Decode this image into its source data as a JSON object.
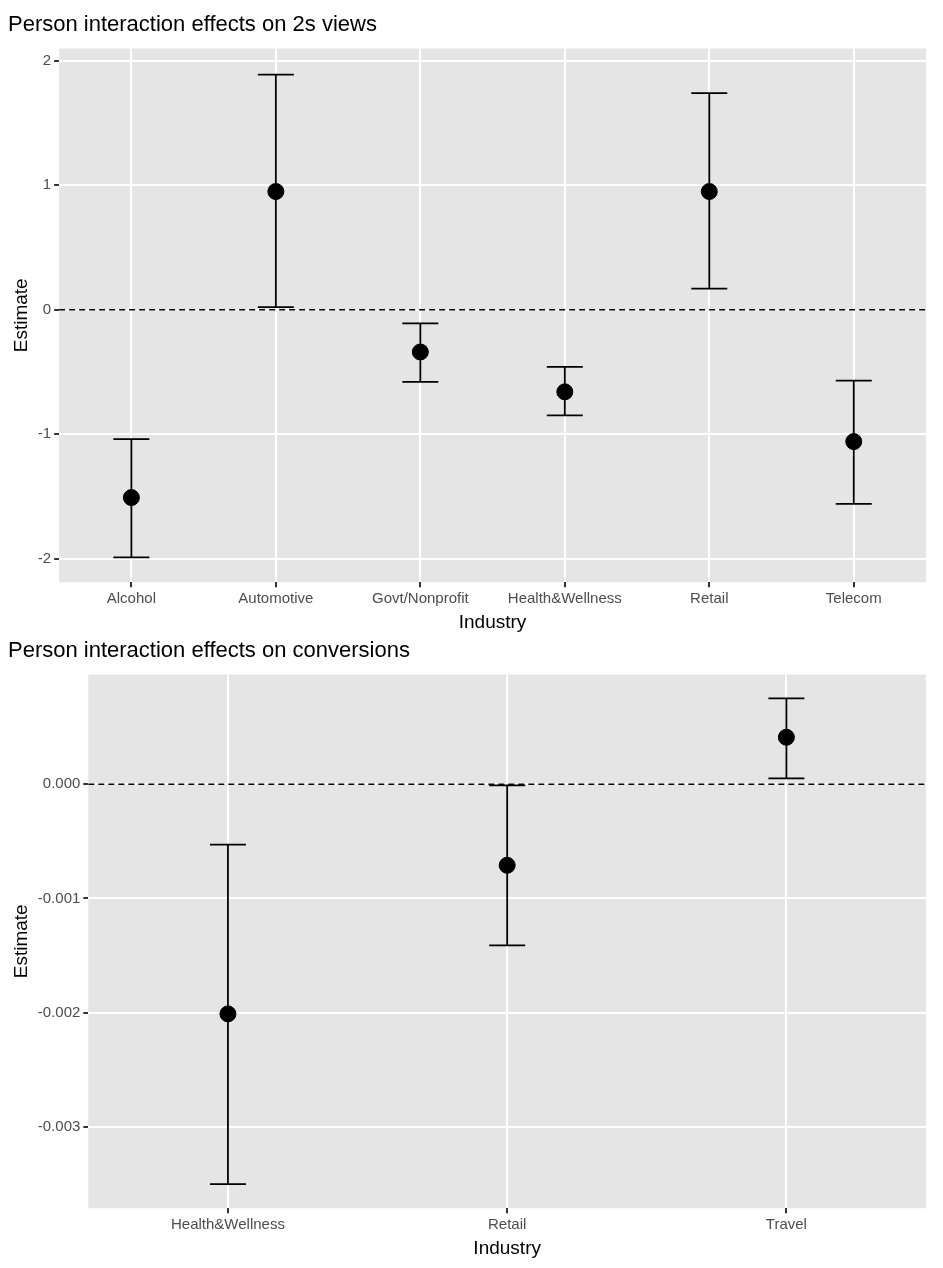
{
  "chart_data": [
    {
      "type": "scatter",
      "title": "Person interaction effects on 2s views",
      "xlabel": "Industry",
      "ylabel": "Estimate",
      "categories": [
        "Alcohol",
        "Automotive",
        "Govt/Nonprofit",
        "Health&Wellness",
        "Retail",
        "Telecom"
      ],
      "values": [
        -1.51,
        0.95,
        -0.34,
        -0.66,
        0.95,
        -1.06
      ],
      "errors": [
        [
          -1.99,
          -1.04
        ],
        [
          0.02,
          1.89
        ],
        [
          -0.58,
          -0.11
        ],
        [
          -0.85,
          -0.46
        ],
        [
          0.17,
          1.74
        ],
        [
          -1.56,
          -0.57
        ]
      ],
      "color": "#000000",
      "marker": "circle",
      "ylim": [
        -2.19,
        2.1
      ],
      "yticks": [
        -2,
        -1,
        0,
        1,
        2
      ],
      "grid": true,
      "ref_lines": [
        {
          "axis": "y",
          "value": 0,
          "color": "#000000",
          "line_style": "dashed"
        }
      ]
    },
    {
      "type": "scatter",
      "title": "Person interaction effects on conversions",
      "xlabel": "Industry",
      "ylabel": "Estimate",
      "categories": [
        "Health&Wellness",
        "Retail",
        "Travel"
      ],
      "values": [
        -0.00201,
        -0.00071,
        0.00041
      ],
      "errors": [
        [
          -0.0035,
          -0.00053
        ],
        [
          -0.00141,
          -1e-05
        ],
        [
          5e-05,
          0.00075
        ]
      ],
      "color": "#000000",
      "marker": "circle",
      "ylim": [
        -0.00371,
        0.00096
      ],
      "yticks": [
        -0.003,
        -0.002,
        -0.001,
        {
          "value": 0,
          "label": "0.000"
        }
      ],
      "grid": true,
      "ref_lines": [
        {
          "axis": "y",
          "value": 0,
          "color": "#000000",
          "line_style": "dashed"
        }
      ]
    }
  ]
}
